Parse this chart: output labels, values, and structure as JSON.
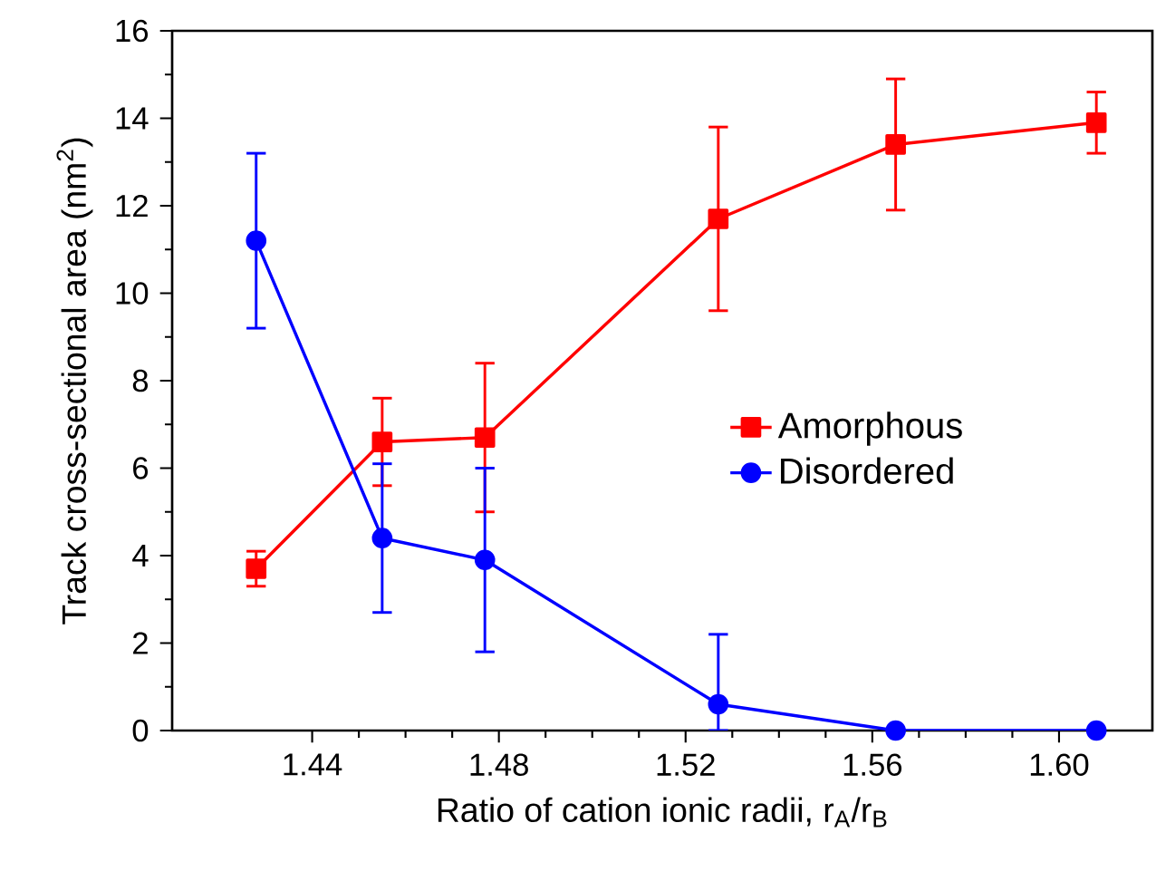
{
  "chart_data": {
    "type": "line",
    "xlabel": "Ratio of cation ionic radii, r$_{A}$/r$_{B}$",
    "ylabel": "Track cross-sectional area (nm$^{2}$)",
    "xlim": [
      1.41,
      1.62
    ],
    "xticks": [
      1.44,
      1.48,
      1.52,
      1.56,
      {
        "value": 1.6,
        "label": "1.60"
      }
    ],
    "ylim": [
      0,
      16
    ],
    "yticks": [
      0,
      2,
      4,
      6,
      8,
      10,
      12,
      14,
      16
    ],
    "legend": "right",
    "line_style": "solid",
    "series": [
      {
        "name": "Amorphous",
        "color": "#ff0000",
        "marker": "square",
        "x": [
          1.428,
          1.455,
          1.477,
          1.527,
          1.565,
          1.608
        ],
        "values": [
          3.7,
          6.6,
          6.7,
          11.7,
          13.4,
          13.9
        ],
        "errors": [
          0.4,
          1.0,
          1.7,
          2.1,
          1.5,
          0.7
        ]
      },
      {
        "name": "Disordered",
        "color": "#0000ff",
        "marker": "circle",
        "x": [
          1.428,
          1.455,
          1.477,
          1.527,
          1.565,
          1.608
        ],
        "values": [
          11.2,
          4.4,
          3.9,
          0.6,
          0,
          0
        ],
        "errors": [
          2.0,
          1.7,
          2.1,
          [
            0,
            2.2
          ],
          null,
          null
        ]
      }
    ]
  }
}
